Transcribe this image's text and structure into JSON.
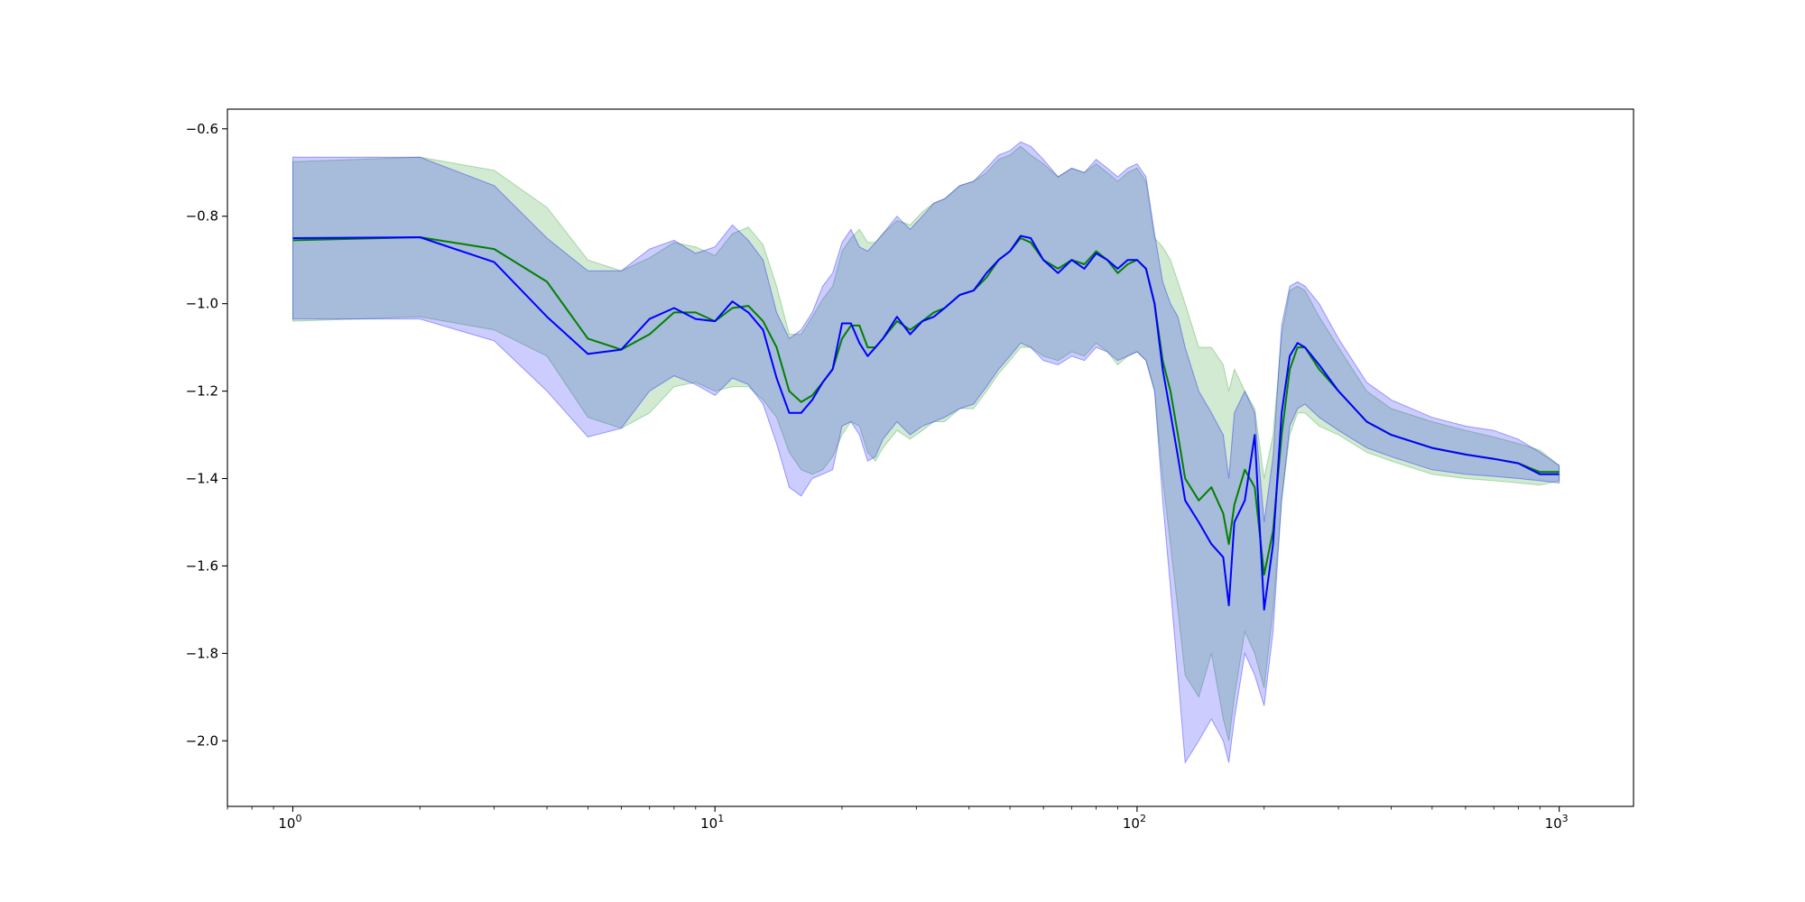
{
  "chart_data": {
    "type": "line",
    "title": "",
    "xlabel": "",
    "ylabel": "",
    "xscale": "log",
    "xlim": [
      0.7,
      1500
    ],
    "ylim": [
      -2.15,
      -0.555
    ],
    "grid": false,
    "x_ticks": [
      {
        "value": 1,
        "base": "10",
        "exp": "0"
      },
      {
        "value": 10,
        "base": "10",
        "exp": "1"
      },
      {
        "value": 100,
        "base": "10",
        "exp": "2"
      },
      {
        "value": 1000,
        "base": "10",
        "exp": "3"
      }
    ],
    "y_ticks": [
      {
        "value": -0.6,
        "label": "−0.6"
      },
      {
        "value": -0.8,
        "label": "−0.8"
      },
      {
        "value": -1.0,
        "label": "−1.0"
      },
      {
        "value": -1.2,
        "label": "−1.2"
      },
      {
        "value": -1.4,
        "label": "−1.4"
      },
      {
        "value": -1.6,
        "label": "−1.6"
      },
      {
        "value": -1.8,
        "label": "−1.8"
      },
      {
        "value": -2.0,
        "label": "−2.0"
      }
    ],
    "series": [
      {
        "color": "#008000",
        "band_color": "#2ca02c",
        "band_opacity": 0.22,
        "x": [
          1,
          2,
          3,
          4,
          5,
          6,
          7,
          8,
          9,
          10,
          11,
          12,
          13,
          14,
          15,
          16,
          17,
          18,
          19,
          20,
          21,
          22,
          23,
          24,
          25,
          27,
          29,
          31,
          33,
          35,
          38,
          41,
          44,
          47,
          50,
          53,
          56,
          60,
          65,
          70,
          75,
          80,
          85,
          90,
          95,
          100,
          105,
          110,
          115,
          120,
          125,
          130,
          140,
          150,
          160,
          165,
          170,
          180,
          190,
          200,
          210,
          220,
          230,
          240,
          250,
          270,
          300,
          350,
          400,
          500,
          600,
          700,
          800,
          900,
          1000
        ],
        "mean": [
          -0.855,
          -0.848,
          -0.875,
          -0.95,
          -1.08,
          -1.105,
          -1.07,
          -1.02,
          -1.02,
          -1.04,
          -1.01,
          -1.005,
          -1.04,
          -1.1,
          -1.2,
          -1.225,
          -1.21,
          -1.18,
          -1.15,
          -1.08,
          -1.05,
          -1.05,
          -1.1,
          -1.1,
          -1.08,
          -1.04,
          -1.06,
          -1.04,
          -1.02,
          -1.01,
          -0.98,
          -0.97,
          -0.94,
          -0.9,
          -0.88,
          -0.85,
          -0.86,
          -0.9,
          -0.92,
          -0.9,
          -0.91,
          -0.88,
          -0.9,
          -0.93,
          -0.91,
          -0.9,
          -0.92,
          -1.0,
          -1.13,
          -1.2,
          -1.3,
          -1.4,
          -1.45,
          -1.42,
          -1.48,
          -1.55,
          -1.46,
          -1.38,
          -1.42,
          -1.62,
          -1.52,
          -1.3,
          -1.15,
          -1.1,
          -1.1,
          -1.15,
          -1.2,
          -1.27,
          -1.3,
          -1.33,
          -1.345,
          -1.355,
          -1.365,
          -1.385,
          -1.385
        ],
        "upper": [
          -0.675,
          -0.665,
          -0.695,
          -0.78,
          -0.9,
          -0.925,
          -0.895,
          -0.86,
          -0.87,
          -0.89,
          -0.84,
          -0.825,
          -0.865,
          -0.96,
          -1.07,
          -1.07,
          -1.03,
          -0.99,
          -0.96,
          -0.88,
          -0.85,
          -0.83,
          -0.86,
          -0.86,
          -0.84,
          -0.81,
          -0.82,
          -0.79,
          -0.77,
          -0.76,
          -0.73,
          -0.72,
          -0.7,
          -0.67,
          -0.66,
          -0.64,
          -0.66,
          -0.68,
          -0.71,
          -0.69,
          -0.7,
          -0.68,
          -0.7,
          -0.72,
          -0.7,
          -0.69,
          -0.72,
          -0.85,
          -0.87,
          -0.9,
          -0.95,
          -1.0,
          -1.1,
          -1.1,
          -1.14,
          -1.2,
          -1.15,
          -1.2,
          -1.24,
          -1.4,
          -1.3,
          -1.07,
          -0.97,
          -0.96,
          -0.97,
          -1.03,
          -1.1,
          -1.2,
          -1.24,
          -1.27,
          -1.29,
          -1.305,
          -1.32,
          -1.335,
          -1.37
        ],
        "lower": [
          -1.04,
          -1.03,
          -1.06,
          -1.12,
          -1.26,
          -1.285,
          -1.25,
          -1.19,
          -1.18,
          -1.2,
          -1.19,
          -1.19,
          -1.22,
          -1.26,
          -1.34,
          -1.38,
          -1.39,
          -1.38,
          -1.35,
          -1.3,
          -1.27,
          -1.28,
          -1.34,
          -1.36,
          -1.33,
          -1.29,
          -1.31,
          -1.29,
          -1.27,
          -1.27,
          -1.24,
          -1.24,
          -1.2,
          -1.16,
          -1.13,
          -1.1,
          -1.1,
          -1.12,
          -1.13,
          -1.11,
          -1.12,
          -1.09,
          -1.11,
          -1.14,
          -1.12,
          -1.11,
          -1.13,
          -1.2,
          -1.4,
          -1.55,
          -1.7,
          -1.85,
          -1.9,
          -1.8,
          -1.95,
          -2.0,
          -1.9,
          -1.75,
          -1.8,
          -1.88,
          -1.7,
          -1.45,
          -1.3,
          -1.25,
          -1.25,
          -1.28,
          -1.3,
          -1.34,
          -1.36,
          -1.39,
          -1.4,
          -1.405,
          -1.41,
          -1.415,
          -1.405
        ]
      },
      {
        "color": "#0000ff",
        "band_color": "#0000ff",
        "band_opacity": 0.2,
        "x": [
          1,
          2,
          3,
          4,
          5,
          6,
          7,
          8,
          9,
          10,
          11,
          12,
          13,
          14,
          15,
          16,
          17,
          18,
          19,
          20,
          21,
          22,
          23,
          24,
          25,
          27,
          29,
          31,
          33,
          35,
          38,
          41,
          44,
          47,
          50,
          53,
          56,
          60,
          65,
          70,
          75,
          80,
          85,
          90,
          95,
          100,
          105,
          110,
          115,
          120,
          125,
          130,
          140,
          150,
          160,
          165,
          170,
          180,
          190,
          200,
          210,
          220,
          230,
          240,
          250,
          270,
          300,
          350,
          400,
          500,
          600,
          700,
          800,
          900,
          1000
        ],
        "mean": [
          -0.85,
          -0.848,
          -0.905,
          -1.03,
          -1.115,
          -1.105,
          -1.035,
          -1.01,
          -1.035,
          -1.04,
          -0.995,
          -1.02,
          -1.06,
          -1.17,
          -1.25,
          -1.25,
          -1.22,
          -1.18,
          -1.15,
          -1.045,
          -1.045,
          -1.09,
          -1.12,
          -1.1,
          -1.08,
          -1.03,
          -1.07,
          -1.04,
          -1.03,
          -1.01,
          -0.98,
          -0.97,
          -0.93,
          -0.9,
          -0.88,
          -0.845,
          -0.85,
          -0.9,
          -0.93,
          -0.9,
          -0.92,
          -0.885,
          -0.9,
          -0.92,
          -0.9,
          -0.9,
          -0.92,
          -1.0,
          -1.15,
          -1.25,
          -1.35,
          -1.45,
          -1.5,
          -1.55,
          -1.58,
          -1.69,
          -1.5,
          -1.45,
          -1.3,
          -1.7,
          -1.55,
          -1.25,
          -1.12,
          -1.09,
          -1.1,
          -1.14,
          -1.2,
          -1.27,
          -1.3,
          -1.33,
          -1.345,
          -1.355,
          -1.365,
          -1.39,
          -1.39
        ],
        "upper": [
          -0.665,
          -0.665,
          -0.73,
          -0.85,
          -0.925,
          -0.925,
          -0.875,
          -0.855,
          -0.885,
          -0.87,
          -0.82,
          -0.855,
          -0.9,
          -1.02,
          -1.08,
          -1.06,
          -1.02,
          -0.96,
          -0.93,
          -0.86,
          -0.83,
          -0.87,
          -0.88,
          -0.86,
          -0.84,
          -0.8,
          -0.83,
          -0.8,
          -0.77,
          -0.76,
          -0.73,
          -0.72,
          -0.69,
          -0.66,
          -0.65,
          -0.63,
          -0.64,
          -0.67,
          -0.71,
          -0.69,
          -0.7,
          -0.67,
          -0.69,
          -0.71,
          -0.69,
          -0.68,
          -0.71,
          -0.84,
          -0.95,
          -1.0,
          -1.03,
          -1.1,
          -1.2,
          -1.25,
          -1.3,
          -1.4,
          -1.25,
          -1.2,
          -1.25,
          -1.5,
          -1.35,
          -1.05,
          -0.96,
          -0.95,
          -0.96,
          -1.0,
          -1.08,
          -1.18,
          -1.22,
          -1.26,
          -1.28,
          -1.29,
          -1.31,
          -1.34,
          -1.37
        ],
        "lower": [
          -1.035,
          -1.035,
          -1.085,
          -1.2,
          -1.305,
          -1.285,
          -1.2,
          -1.165,
          -1.185,
          -1.21,
          -1.17,
          -1.185,
          -1.23,
          -1.32,
          -1.42,
          -1.44,
          -1.4,
          -1.39,
          -1.38,
          -1.28,
          -1.27,
          -1.3,
          -1.36,
          -1.35,
          -1.31,
          -1.27,
          -1.3,
          -1.28,
          -1.27,
          -1.26,
          -1.24,
          -1.23,
          -1.19,
          -1.15,
          -1.12,
          -1.09,
          -1.1,
          -1.13,
          -1.14,
          -1.12,
          -1.13,
          -1.1,
          -1.11,
          -1.13,
          -1.12,
          -1.11,
          -1.13,
          -1.2,
          -1.45,
          -1.65,
          -1.85,
          -2.05,
          -2.0,
          -1.95,
          -2.0,
          -2.05,
          -1.95,
          -1.8,
          -1.85,
          -1.92,
          -1.75,
          -1.45,
          -1.28,
          -1.24,
          -1.23,
          -1.26,
          -1.29,
          -1.33,
          -1.35,
          -1.38,
          -1.39,
          -1.395,
          -1.4,
          -1.405,
          -1.41
        ]
      }
    ]
  }
}
